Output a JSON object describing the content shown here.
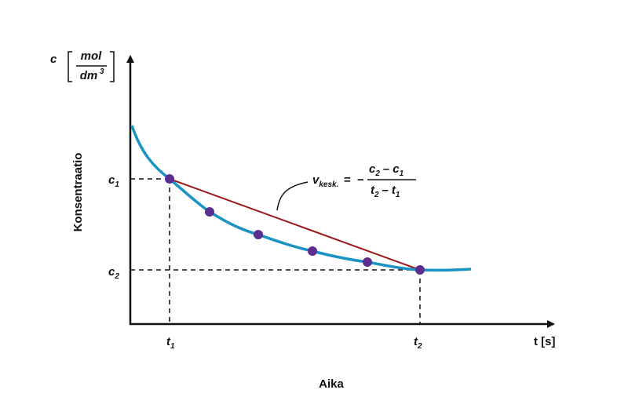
{
  "y_axis": {
    "symbol": "c",
    "unit_numerator": "mol",
    "unit_denominator": "dm",
    "unit_exponent": "3",
    "title": "Konsentraatio"
  },
  "x_axis": {
    "label": "t [s]",
    "title": "Aika"
  },
  "markers": {
    "c1": {
      "symbol": "c",
      "subscript": "1"
    },
    "c2": {
      "symbol": "c",
      "subscript": "2"
    },
    "t1": {
      "symbol": "t",
      "subscript": "1"
    },
    "t2": {
      "symbol": "t",
      "subscript": "2"
    }
  },
  "formula": {
    "symbol": "v",
    "subscript": "kesk.",
    "equals": "=",
    "sign": "−",
    "numerator": [
      "c",
      "2",
      "–",
      "c",
      "1"
    ],
    "denominator": [
      "t",
      "2",
      "–",
      "t",
      "1"
    ]
  }
}
